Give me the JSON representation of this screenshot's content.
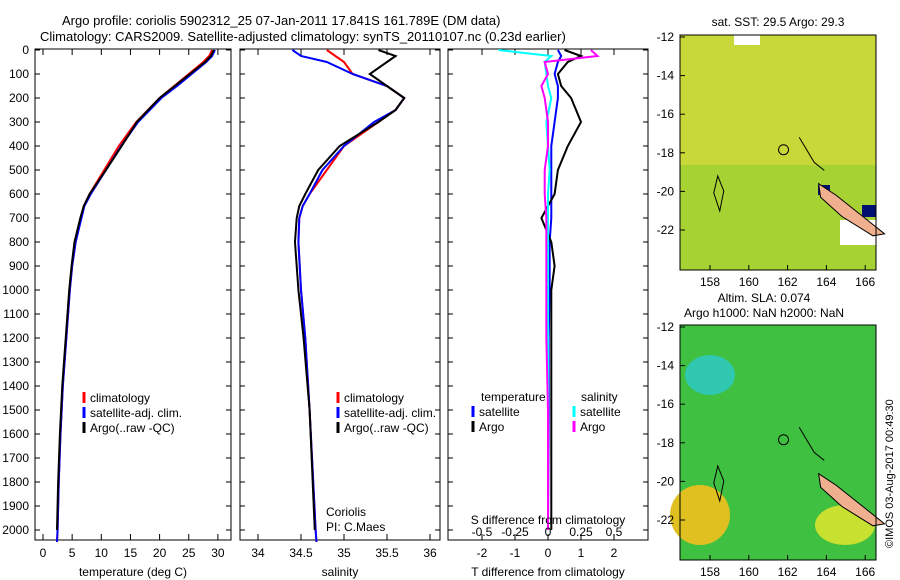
{
  "title_line1": "Argo profile: coriolis 5902312_25 07-Jan-2011 17.841S 161.789E (DM data)",
  "title_line2": "Climatology: CARS2009. Satellite-adjusted climatology: synTS_20110107.nc (0.23d earlier)",
  "watermark": "©IMOS 03-Aug-2017 00:49:30",
  "colors": {
    "climatology": "#ff0000",
    "satellite": "#0000ff",
    "argo": "#000000",
    "sal_satellite": "#00ffff",
    "sal_argo": "#ff00ff"
  },
  "chart_data": [
    {
      "type": "line",
      "xlabel": "temperature (deg C)",
      "xlim": [
        -1,
        31
      ],
      "xticks": [
        "0",
        "5",
        "10",
        "15",
        "20",
        "25",
        "30"
      ],
      "ylim": [
        0,
        2050
      ],
      "yticks": [
        "0",
        "100",
        "200",
        "300",
        "400",
        "500",
        "600",
        "700",
        "800",
        "900",
        "1000",
        "1100",
        "1200",
        "1300",
        "1400",
        "1500",
        "1600",
        "1700",
        "1800",
        "1900",
        "2000"
      ],
      "legend": [
        "climatology",
        "satellite-adj. clim.",
        "Argo(..raw -QC)"
      ],
      "depth": [
        0,
        25,
        50,
        100,
        150,
        200,
        300,
        400,
        500,
        600,
        650,
        700,
        800,
        900,
        1000,
        1200,
        1400,
        1600,
        1800,
        2000,
        2050
      ],
      "series": [
        {
          "name": "climatology",
          "values": [
            29.0,
            28.5,
            27.5,
            25.0,
            22.5,
            20.0,
            16.0,
            13.0,
            10.5,
            8.0,
            7.0,
            6.5,
            5.6,
            5.0,
            4.6,
            4.0,
            3.4,
            3.0,
            2.7,
            2.5,
            2.4
          ]
        },
        {
          "name": "satellite-adj. clim.",
          "values": [
            29.5,
            29.0,
            28.0,
            25.5,
            23.0,
            20.3,
            16.3,
            13.4,
            10.8,
            8.2,
            7.1,
            6.6,
            5.6,
            5.0,
            4.6,
            4.0,
            3.4,
            3.0,
            2.7,
            2.5,
            2.4
          ]
        },
        {
          "name": "Argo",
          "values": [
            29.3,
            28.8,
            27.8,
            25.2,
            22.6,
            20.0,
            16.1,
            13.5,
            10.8,
            8.0,
            7.0,
            6.4,
            5.4,
            4.9,
            4.5,
            3.9,
            3.3,
            2.9,
            2.6,
            2.4,
            null
          ]
        }
      ]
    },
    {
      "type": "line",
      "xlabel": "salinity",
      "xlim": [
        33.8,
        36.1
      ],
      "xticks": [
        "34",
        "34.5",
        "35",
        "35.5",
        "36"
      ],
      "ylim": [
        0,
        2050
      ],
      "legend": [
        "climatology",
        "satellite-adj. clim.",
        "Argo(..raw -QC)"
      ],
      "annotation": [
        "Coriolis",
        "PI: C.Maes"
      ],
      "depth": [
        0,
        25,
        50,
        100,
        150,
        200,
        250,
        300,
        400,
        500,
        600,
        650,
        700,
        800,
        1000,
        1200,
        1500,
        2000,
        2050
      ],
      "series": [
        {
          "name": "climatology",
          "values": [
            34.8,
            34.9,
            35.0,
            35.1,
            35.5,
            35.7,
            35.6,
            35.4,
            35.0,
            34.8,
            34.6,
            34.52,
            34.48,
            34.47,
            34.5,
            34.55,
            34.6,
            34.67,
            34.68
          ]
        },
        {
          "name": "satellite-adj. clim.",
          "values": [
            34.4,
            34.5,
            34.8,
            35.1,
            35.5,
            35.7,
            35.6,
            35.35,
            35.0,
            34.75,
            34.6,
            34.52,
            34.48,
            34.47,
            34.5,
            34.55,
            34.6,
            34.67,
            34.68
          ]
        },
        {
          "name": "Argo",
          "values": [
            35.4,
            35.6,
            35.5,
            35.3,
            35.5,
            35.7,
            35.6,
            35.4,
            34.95,
            34.7,
            34.55,
            34.48,
            34.45,
            34.43,
            34.47,
            34.53,
            34.6,
            34.66,
            null
          ]
        }
      ]
    },
    {
      "type": "line",
      "xlabel": "T difference from climatology",
      "xlabel2": "S difference from climatology",
      "xlim": [
        -3,
        3
      ],
      "xticks": [
        "-2",
        "-1",
        "0",
        "1",
        "2"
      ],
      "xticks2": [
        "-0.5",
        "-0.25",
        "0",
        "0.25",
        "0.5"
      ],
      "ylim": [
        0,
        2050
      ],
      "legend_temperature": {
        "title": "temperature",
        "items": [
          "satellite",
          "Argo"
        ]
      },
      "legend_salinity": {
        "title": "salinity",
        "items": [
          "satellite",
          "Argo"
        ]
      },
      "depth": [
        0,
        25,
        50,
        100,
        150,
        200,
        300,
        400,
        500,
        600,
        700,
        800,
        900,
        1000,
        1200,
        1500,
        2000
      ],
      "series": [
        {
          "name": "T satellite",
          "values": [
            0.3,
            0.4,
            0.3,
            0.2,
            0.3,
            0.3,
            0.2,
            0.1,
            0.1,
            0.1,
            0.1,
            0.05,
            0.05,
            0.05,
            0.02,
            0.02,
            0.0
          ]
        },
        {
          "name": "T Argo",
          "values": [
            0.5,
            1.0,
            0.6,
            0.3,
            0.4,
            0.7,
            1.0,
            0.6,
            0.3,
            0.2,
            -0.2,
            0.1,
            0.2,
            0.1,
            0.1,
            0.1,
            0.1
          ]
        },
        {
          "name": "S satellite",
          "values": [
            -1.5,
            0.1,
            -0.1,
            -0.05,
            0.0,
            0.1,
            -0.05,
            0.0,
            0.05,
            0.0,
            0.0,
            0.0,
            0.0,
            0.0,
            0.0,
            0.0,
            0.0
          ]
        },
        {
          "name": "S Argo",
          "values": [
            1.3,
            1.5,
            -0.1,
            0.0,
            -0.2,
            -0.1,
            0.0,
            0.0,
            -0.1,
            -0.1,
            -0.05,
            -0.05,
            -0.05,
            -0.05,
            -0.05,
            0.0,
            0.0
          ]
        }
      ]
    },
    {
      "type": "heatmap",
      "title": "sat. SST: 29.5 Argo: 29.3",
      "xticks": [
        "158",
        "160",
        "162",
        "164",
        "166"
      ],
      "yticks": [
        "-12",
        "-14",
        "-16",
        "-18",
        "-20",
        "-22"
      ]
    },
    {
      "type": "heatmap",
      "title": "Altim. SLA: 0.074",
      "title2": "Argo h1000: NaN h2000: NaN",
      "xticks": [
        "158",
        "160",
        "162",
        "164",
        "166"
      ],
      "yticks": [
        "-12",
        "-14",
        "-16",
        "-18",
        "-20",
        "-22"
      ]
    }
  ]
}
